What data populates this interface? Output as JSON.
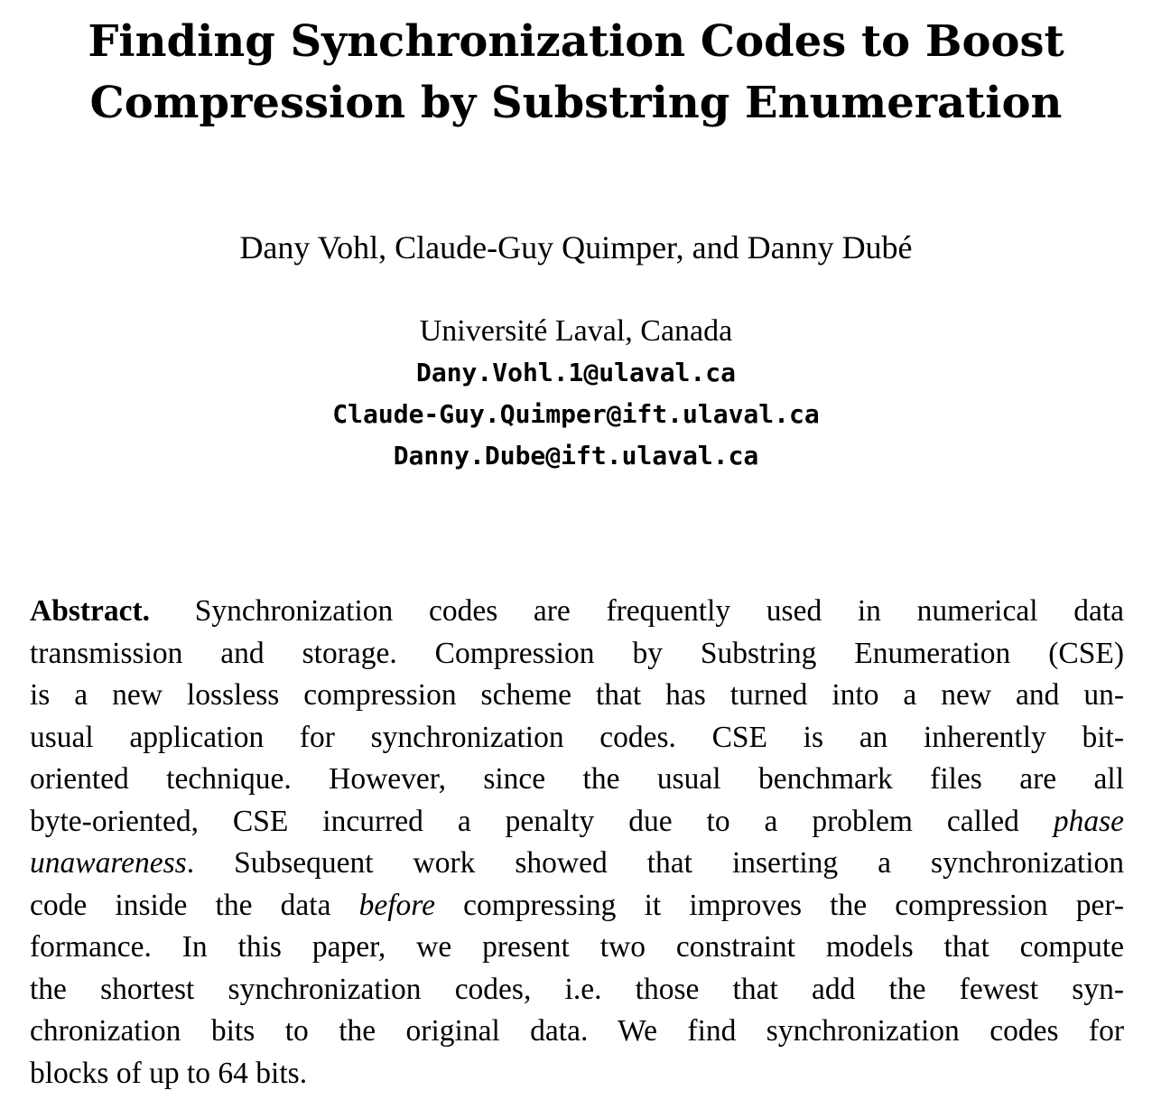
{
  "title": {
    "line1": "Finding Synchronization Codes to Boost",
    "line2": "Compression by Substring Enumeration"
  },
  "authors": "Dany Vohl, Claude-Guy Quimper, and Danny Dubé",
  "affiliation": "Université Laval, Canada",
  "emails": [
    "Dany.Vohl.1@ulaval.ca",
    "Claude-Guy.Quimper@ift.ulaval.ca",
    "Danny.Dube@ift.ulaval.ca"
  ],
  "abstract": {
    "label": "Abstract.",
    "l1": "Synchronization codes are frequently used in numerical data",
    "l2": "transmission and storage. Compression by Substring Enumeration (CSE)",
    "l3": "is a new lossless compression scheme that has turned into a new and un-",
    "l4": "usual application for synchronization codes. CSE is an inherently bit-",
    "l5": "oriented technique. However, since the usual benchmark files are all",
    "l6a": "byte-oriented, CSE incurred a penalty due to a problem called",
    "l6b": "phase",
    "l7a": "unawareness",
    "l7b": ". Subsequent work showed that inserting a synchronization",
    "l8a": "code inside the data",
    "l8b": "before",
    "l8c": "compressing it improves the compression per-",
    "l9": "formance. In this paper, we present two constraint models that compute",
    "l10": "the shortest synchronization codes, i.e. those that add the fewest syn-",
    "l11": "chronization bits to the original data. We find synchronization codes for",
    "l12": "blocks of up to 64 bits."
  }
}
